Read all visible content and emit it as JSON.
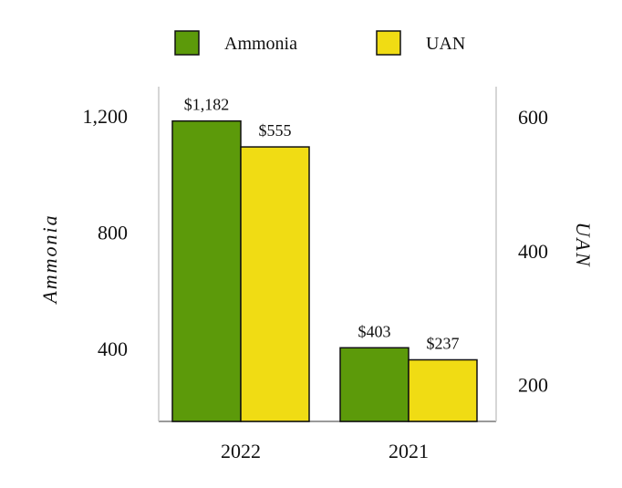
{
  "chart_data": {
    "type": "bar",
    "categories": [
      "2022",
      "2021"
    ],
    "series": [
      {
        "name": "Ammonia",
        "axis": "left",
        "color": "#5c9a0a",
        "values": [
          1182,
          403
        ],
        "value_labels": [
          "$1,182",
          "$403"
        ]
      },
      {
        "name": "UAN",
        "axis": "right",
        "color": "#f0dc14",
        "values": [
          555,
          237
        ],
        "value_labels": [
          "$555",
          "$237"
        ]
      }
    ],
    "y_left": {
      "label": "Ammonia",
      "ticks": [
        400,
        800,
        1200
      ],
      "tick_labels": [
        "400",
        "800",
        "1,200"
      ],
      "range": [
        150,
        1300
      ]
    },
    "y_right": {
      "label": "UAN",
      "ticks": [
        200,
        400,
        600
      ],
      "tick_labels": [
        "200",
        "400",
        "600"
      ],
      "range": [
        145,
        645
      ]
    },
    "grid": false,
    "legend_position": "top-center"
  }
}
